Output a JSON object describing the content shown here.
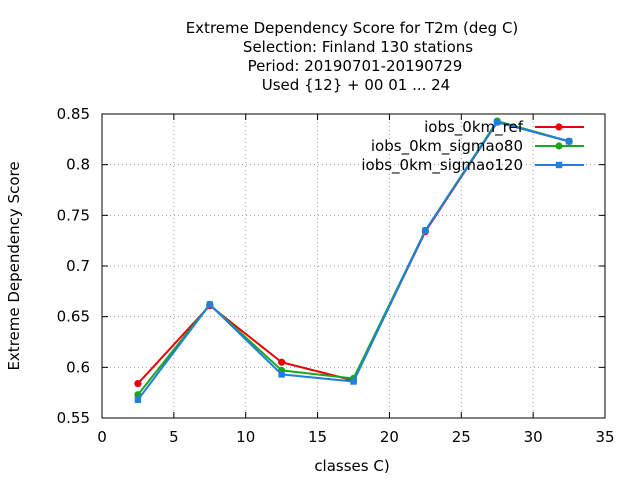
{
  "chart_data": {
    "type": "line",
    "title_lines": [
      "Extreme Dependency Score  for T2m (deg C)",
      "Selection: Finland     130 stations",
      "Period: 20190701-20190729",
      "Used {12} + 00 01 ... 24"
    ],
    "xlabel": "classes C)",
    "ylabel": "Extreme Dependency Score",
    "xlim": [
      0,
      35
    ],
    "ylim": [
      0.55,
      0.85
    ],
    "x_ticks": [
      0,
      5,
      10,
      15,
      20,
      25,
      30,
      35
    ],
    "y_ticks": [
      0.55,
      0.6,
      0.65,
      0.7,
      0.75,
      0.8,
      0.85
    ],
    "x_tick_labels": [
      "0",
      "5",
      "10",
      "15",
      "20",
      "25",
      "30",
      "35"
    ],
    "y_tick_labels": [
      "0.55",
      "0.6",
      "0.65",
      "0.7",
      "0.75",
      "0.8",
      "0.85"
    ],
    "grid": true,
    "legend_position": "top-right",
    "x": [
      2.5,
      7.5,
      12.5,
      17.5,
      22.5,
      27.5,
      32.5
    ],
    "series": [
      {
        "name": "iobs_0km_ref",
        "color": "#e8000b",
        "marker": "circle",
        "values": [
          0.584,
          0.661,
          0.605,
          0.587,
          0.734,
          0.842,
          0.823
        ]
      },
      {
        "name": "iobs_0km_sigmao80",
        "color": "#1aa81a",
        "marker": "circle",
        "values": [
          0.573,
          0.662,
          0.597,
          0.589,
          0.735,
          0.843,
          0.823
        ]
      },
      {
        "name": "iobs_0km_sigmao120",
        "color": "#1e7fe0",
        "marker": "square",
        "values": [
          0.568,
          0.662,
          0.593,
          0.586,
          0.735,
          0.842,
          0.823
        ]
      }
    ]
  }
}
